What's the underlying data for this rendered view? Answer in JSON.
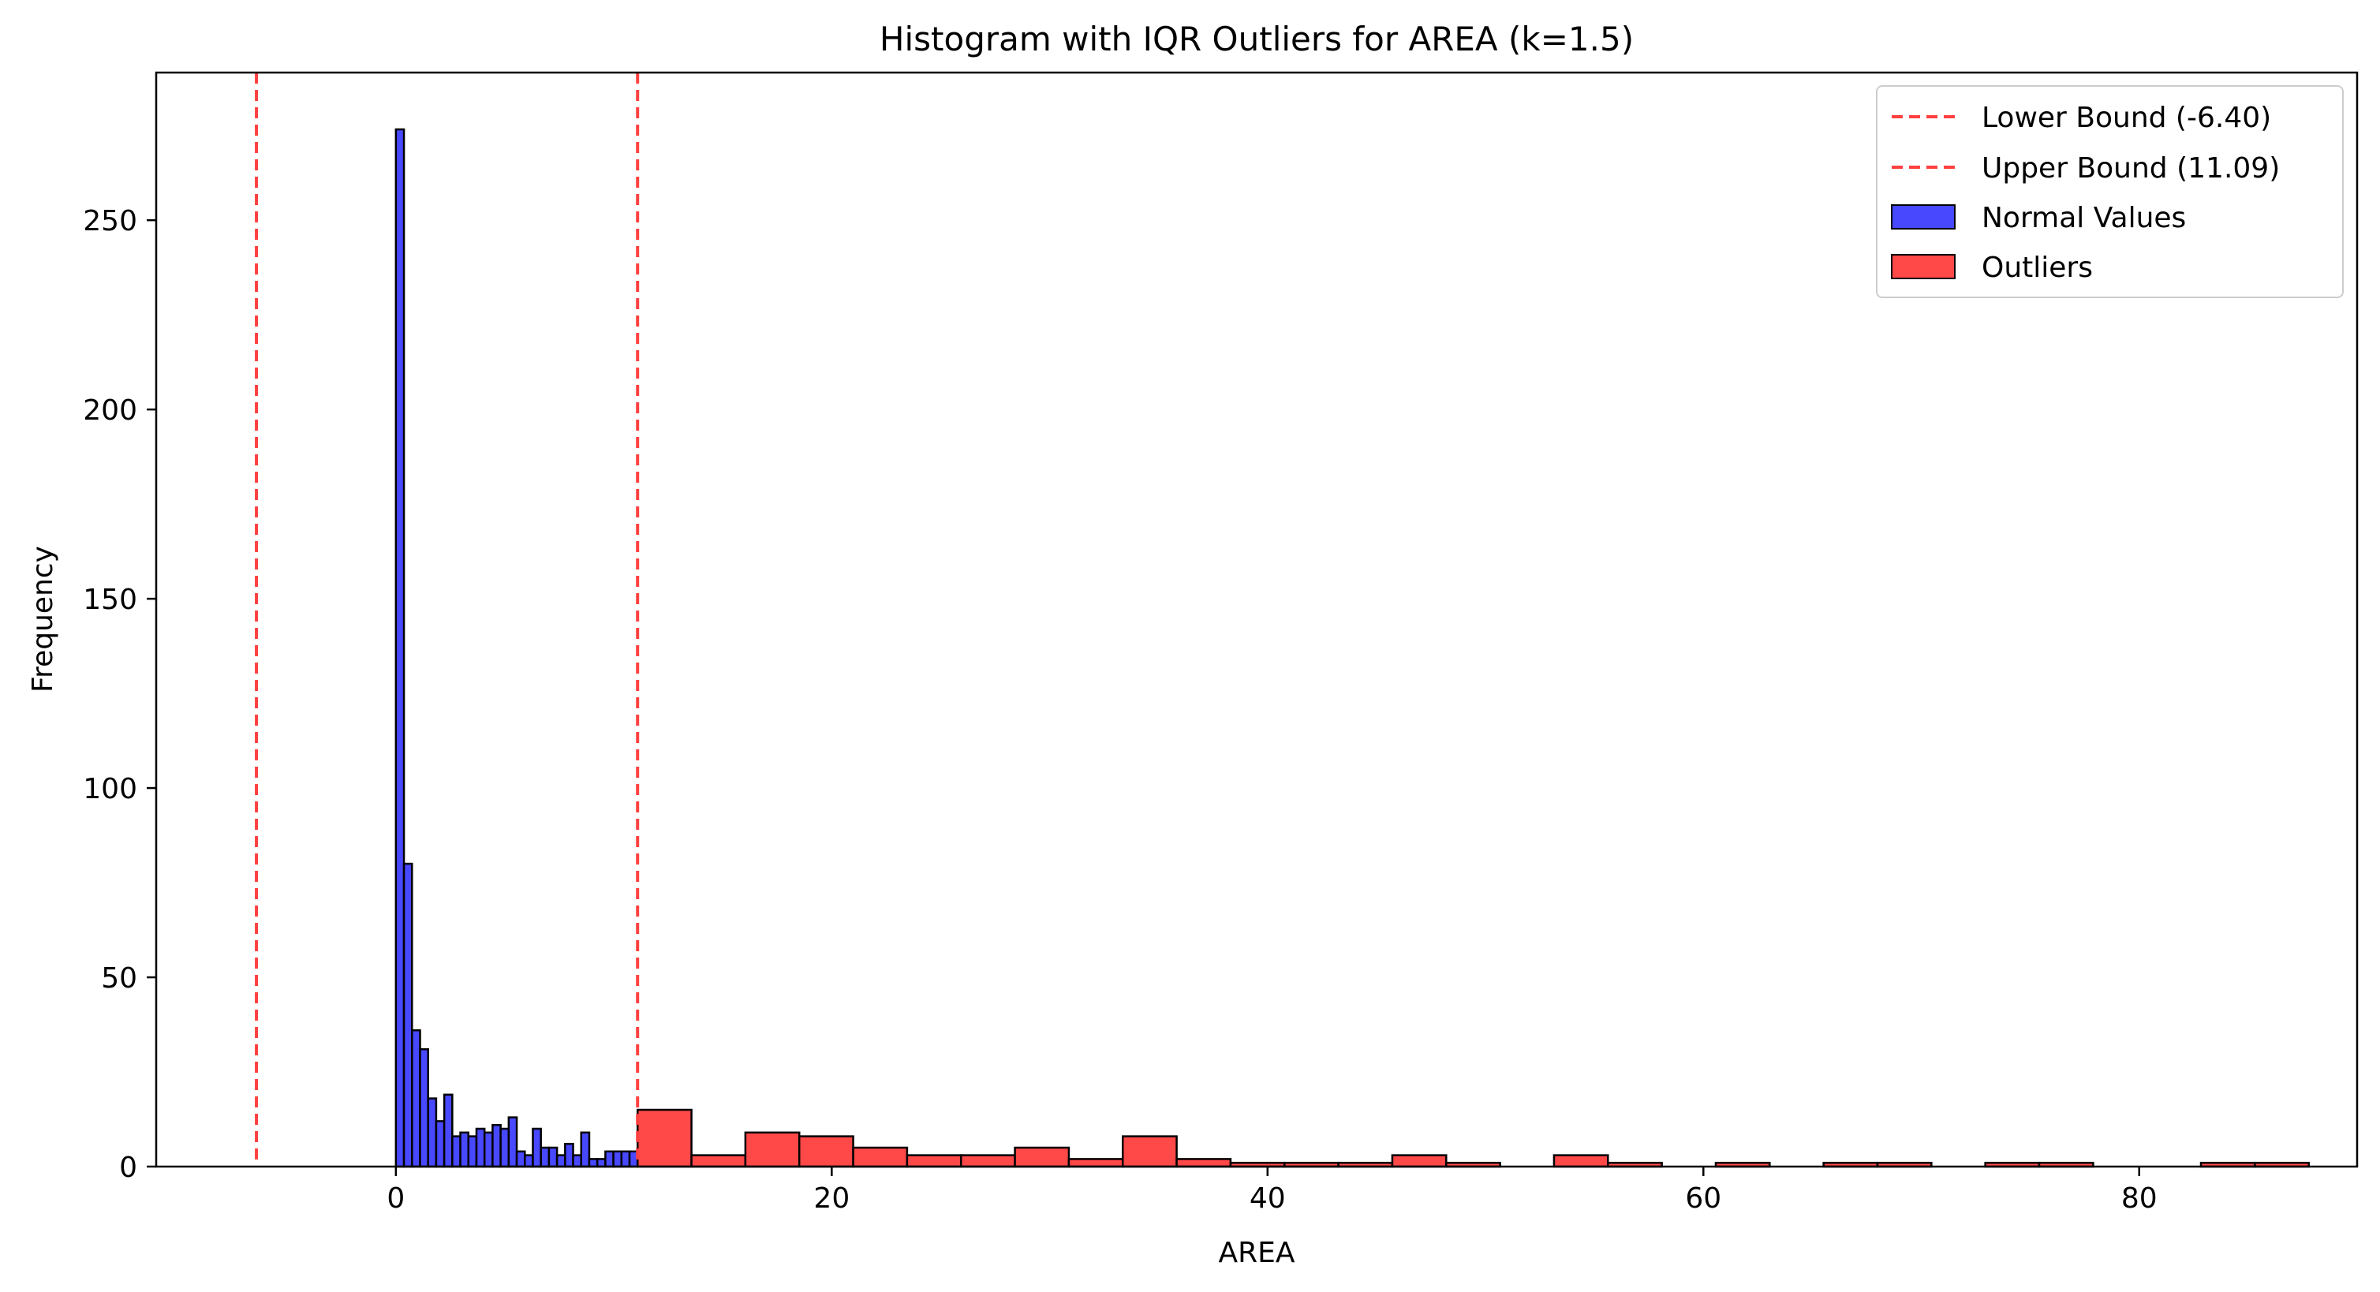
{
  "chart_data": {
    "type": "bar",
    "title": "Histogram with IQR Outliers for AREA (k=1.5)",
    "xlabel": "AREA",
    "ylabel": "Frequency",
    "xlim": [
      -11,
      90
    ],
    "ylim": [
      0,
      289
    ],
    "xticks": [
      0,
      20,
      40,
      60,
      80
    ],
    "yticks": [
      0,
      50,
      100,
      150,
      200,
      250
    ],
    "grid": false,
    "legend_position": "top-right",
    "lines": [
      {
        "name": "Lower Bound (-6.40)",
        "x": -6.4,
        "color": "#ff4040",
        "style": "dashed"
      },
      {
        "name": "Upper Bound (11.09)",
        "x": 11.09,
        "color": "#ff4040",
        "style": "dashed"
      }
    ],
    "series": [
      {
        "name": "Normal Values",
        "color": "#4848ff",
        "bin_start": 0,
        "bin_width": 0.3697,
        "values": [
          274,
          80,
          36,
          31,
          18,
          12,
          19,
          8,
          9,
          8,
          10,
          9,
          11,
          10,
          13,
          4,
          3,
          10,
          5,
          5,
          3,
          6,
          3,
          9,
          2,
          2,
          4,
          4,
          4,
          4
        ]
      },
      {
        "name": "Outliers",
        "color": "#ff4848",
        "bin_start": 11.09,
        "bin_width": 2.4739,
        "values": [
          15,
          3,
          9,
          8,
          5,
          3,
          3,
          5,
          2,
          8,
          2,
          1,
          1,
          1,
          3,
          1,
          0,
          3,
          1,
          0,
          1,
          0,
          1,
          1,
          0,
          1,
          1,
          0,
          0,
          1,
          1
        ]
      }
    ]
  }
}
